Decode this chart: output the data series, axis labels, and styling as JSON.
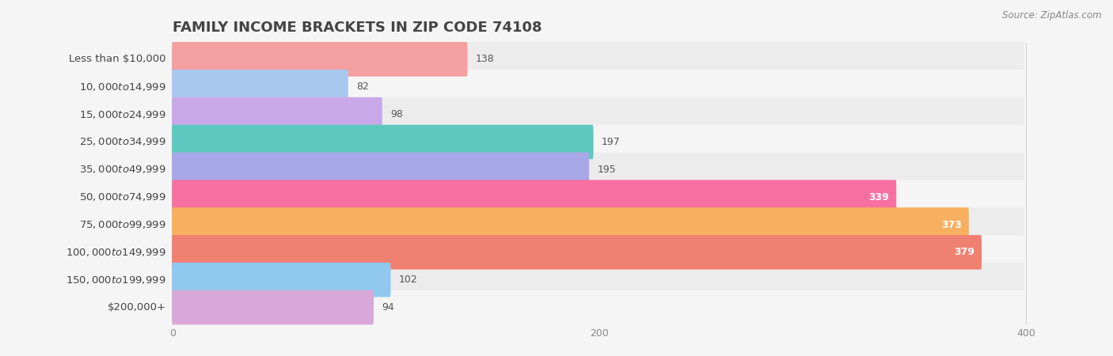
{
  "title": "FAMILY INCOME BRACKETS IN ZIP CODE 74108",
  "source": "Source: ZipAtlas.com",
  "categories": [
    "Less than $10,000",
    "$10,000 to $14,999",
    "$15,000 to $24,999",
    "$25,000 to $34,999",
    "$35,000 to $49,999",
    "$50,000 to $74,999",
    "$75,000 to $99,999",
    "$100,000 to $149,999",
    "$150,000 to $199,999",
    "$200,000+"
  ],
  "values": [
    138,
    82,
    98,
    197,
    195,
    339,
    373,
    379,
    102,
    94
  ],
  "colors": [
    "#F4A0A0",
    "#A8C8F0",
    "#C8A8E8",
    "#5CC8C0",
    "#A8A8E8",
    "#F870A0",
    "#F8B060",
    "#F08070",
    "#90C8F0",
    "#D8A8D8"
  ],
  "xlim": [
    0,
    420
  ],
  "xticks": [
    0,
    200,
    400
  ],
  "background_color": "#f5f5f5",
  "row_bg_even": "#ececec",
  "row_bg_odd": "#f5f5f5",
  "title_fontsize": 13,
  "label_fontsize": 9.5,
  "value_fontsize": 9,
  "source_fontsize": 8.5,
  "value_threshold": 250
}
